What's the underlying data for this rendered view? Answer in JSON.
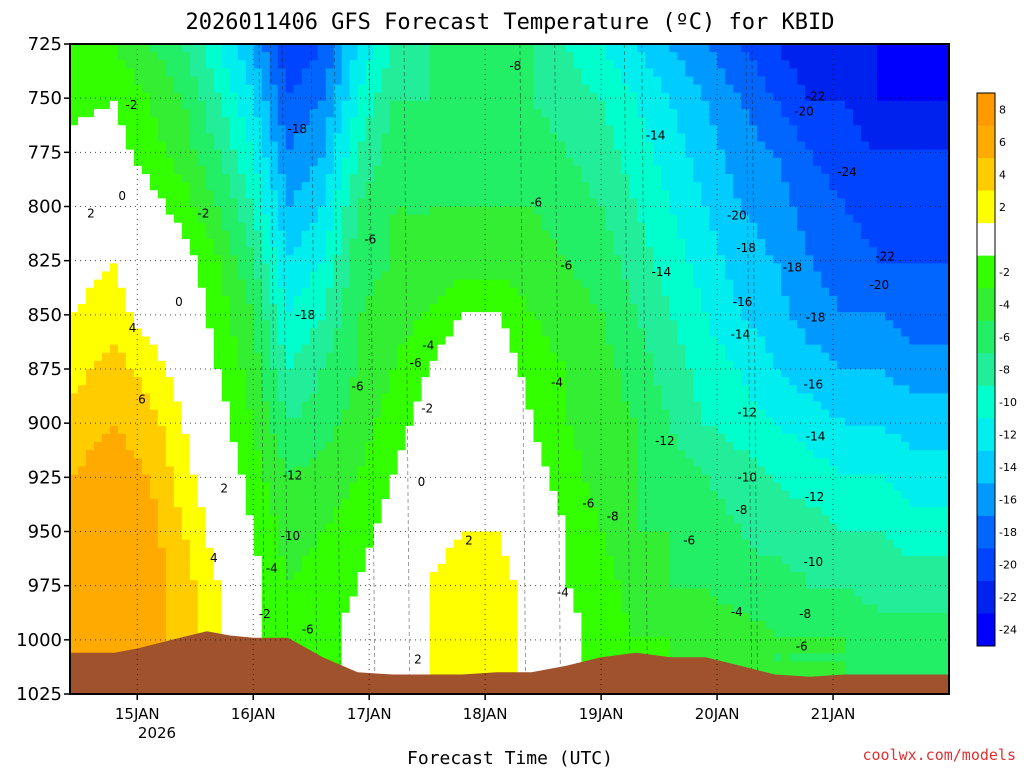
{
  "chart_data": {
    "type": "heatmap",
    "title": "2026011406 GFS Forecast Temperature (ºC) for KBID",
    "xlabel": "Forecast Time (UTC)",
    "ylabel": "",
    "credit": "coolwx.com/models",
    "y_axis": {
      "ticks": [
        725,
        750,
        775,
        800,
        825,
        850,
        875,
        900,
        925,
        950,
        975,
        1000,
        1025
      ],
      "range": [
        725,
        1025
      ],
      "inverted": true,
      "grid": true
    },
    "x_axis": {
      "tick_labels": [
        "15JAN",
        "16JAN",
        "17JAN",
        "18JAN",
        "19JAN",
        "20JAN",
        "21JAN"
      ],
      "tick_positions_days": [
        1,
        2,
        3,
        4,
        5,
        6,
        7
      ],
      "year_label": "2026",
      "range_days": [
        0.42,
        8.0
      ],
      "grid": true
    },
    "colorbar": {
      "ticks": [
        8,
        6,
        4,
        2,
        -2,
        -4,
        -6,
        -8,
        -10,
        -12,
        -14,
        -16,
        -18,
        -20,
        -22,
        -24
      ],
      "bands": [
        {
          "min": 8,
          "max": 10,
          "color": "#ff9900"
        },
        {
          "min": 6,
          "max": 8,
          "color": "#ffaa00"
        },
        {
          "min": 4,
          "max": 6,
          "color": "#ffcc00"
        },
        {
          "min": 2,
          "max": 4,
          "color": "#ffff00"
        },
        {
          "min": -2,
          "max": 2,
          "color": "#ffffff"
        },
        {
          "min": -4,
          "max": -2,
          "color": "#33ff00"
        },
        {
          "min": -6,
          "max": -4,
          "color": "#33ee33"
        },
        {
          "min": -8,
          "max": -6,
          "color": "#22ee66"
        },
        {
          "min": -10,
          "max": -8,
          "color": "#22ee99"
        },
        {
          "min": -12,
          "max": -10,
          "color": "#00ffcc"
        },
        {
          "min": -14,
          "max": -12,
          "color": "#00eeee"
        },
        {
          "min": -16,
          "max": -14,
          "color": "#00ccff"
        },
        {
          "min": -18,
          "max": -16,
          "color": "#0099ff"
        },
        {
          "min": -20,
          "max": -18,
          "color": "#0066ff"
        },
        {
          "min": -22,
          "max": -20,
          "color": "#0044ff"
        },
        {
          "min": -24,
          "max": -22,
          "color": "#0022ee"
        },
        {
          "min": -26,
          "max": -24,
          "color": "#0000ff"
        }
      ]
    },
    "ground_color": "#a0522d",
    "freezing_line_color": "#cc1177",
    "ground_profile": {
      "days": [
        0.42,
        0.8,
        1.0,
        1.3,
        1.6,
        1.8,
        2.0,
        2.3,
        2.6,
        2.9,
        3.2,
        3.5,
        3.8,
        4.1,
        4.4,
        4.7,
        5.0,
        5.3,
        5.6,
        5.9,
        6.2,
        6.5,
        6.8,
        7.1,
        7.4,
        8.0
      ],
      "pressure": [
        1006,
        1006,
        1004,
        1000,
        996,
        998,
        999,
        999,
        1008,
        1015,
        1016,
        1016,
        1016,
        1015,
        1015,
        1012,
        1008,
        1006,
        1008,
        1008,
        1012,
        1016,
        1017,
        1016,
        1016,
        1016
      ]
    },
    "temperature_field": {
      "days": [
        0.42,
        0.8,
        1.1,
        1.4,
        1.7,
        2.0,
        2.3,
        2.6,
        2.9,
        3.2,
        3.5,
        3.8,
        4.1,
        4.4,
        4.7,
        5.0,
        5.3,
        5.6,
        5.9,
        6.2,
        6.5,
        6.8,
        7.1,
        7.4,
        7.7,
        8.0
      ],
      "pressure": [
        725,
        750,
        775,
        800,
        825,
        850,
        875,
        900,
        925,
        950,
        975,
        1000,
        1025
      ],
      "values": [
        [
          -4,
          -4,
          -6,
          -8,
          -12,
          -16,
          -22,
          -20,
          -14,
          -10,
          -8,
          -8,
          -8,
          -8,
          -10,
          -12,
          -14,
          -16,
          -18,
          -20,
          -22,
          -24,
          -24,
          -24,
          -26,
          -26
        ],
        [
          -3,
          -2,
          -4,
          -6,
          -10,
          -14,
          -20,
          -18,
          -12,
          -8,
          -8,
          -8,
          -8,
          -8,
          -9,
          -10,
          -12,
          -14,
          -16,
          -18,
          -20,
          -22,
          -22,
          -24,
          -24,
          -24
        ],
        [
          -1,
          -1,
          -3,
          -5,
          -8,
          -12,
          -18,
          -16,
          -10,
          -7,
          -7,
          -7,
          -7,
          -7,
          -8,
          -9,
          -11,
          -13,
          -15,
          -17,
          -18,
          -20,
          -21,
          -22,
          -22,
          -22
        ],
        [
          0,
          0,
          -1,
          -3,
          -6,
          -10,
          -16,
          -14,
          -8,
          -6,
          -6,
          -6,
          -6,
          -6,
          -7,
          -8,
          -10,
          -12,
          -14,
          -16,
          -17,
          -19,
          -20,
          -21,
          -21,
          -21
        ],
        [
          1,
          2,
          0,
          -1,
          -4,
          -8,
          -14,
          -12,
          -7,
          -6,
          -6,
          -5,
          -5,
          -5,
          -6,
          -7,
          -9,
          -11,
          -13,
          -15,
          -16,
          -18,
          -19,
          -20,
          -20,
          -20
        ],
        [
          2,
          3,
          1,
          0,
          -3,
          -6,
          -12,
          -10,
          -6,
          -5,
          -4,
          -2,
          -2,
          -4,
          -5,
          -6,
          -8,
          -10,
          -12,
          -14,
          -15,
          -17,
          -18,
          -18,
          -19,
          -19
        ],
        [
          3,
          5,
          3,
          1,
          -2,
          -5,
          -10,
          -8,
          -6,
          -4,
          -2,
          0,
          0,
          -3,
          -4,
          -5,
          -7,
          -9,
          -11,
          -12,
          -14,
          -15,
          -16,
          -16,
          -17,
          -17
        ],
        [
          5,
          6,
          5,
          2,
          -1,
          -4,
          -8,
          -7,
          -5,
          -3,
          -1,
          1,
          1,
          -2,
          -4,
          -5,
          -6,
          -8,
          -10,
          -11,
          -12,
          -13,
          -14,
          -14,
          -15,
          -15
        ],
        [
          6,
          7,
          6,
          3,
          0,
          -3,
          -6,
          -5,
          -4,
          -2,
          0,
          1,
          1,
          -1,
          -3,
          -5,
          -6,
          -7,
          -8,
          -9,
          -10,
          -11,
          -12,
          -12,
          -13,
          -13
        ],
        [
          7,
          8,
          7,
          4,
          1,
          -2,
          -5,
          -4,
          -3,
          -1,
          1,
          2,
          2,
          0,
          -2,
          -4,
          -6,
          -6,
          -7,
          -8,
          -9,
          -9,
          -10,
          -10,
          -11,
          -11
        ],
        [
          7,
          8,
          7,
          5,
          2,
          -1,
          -4,
          -3,
          -2,
          0,
          2,
          3,
          3,
          1,
          -2,
          -3,
          -5,
          -6,
          -6,
          -7,
          -7,
          -8,
          -8,
          -9,
          -9,
          -9
        ],
        [
          6,
          7,
          7,
          5,
          2,
          -1,
          -4,
          -3,
          -1,
          1,
          2,
          3,
          3,
          1,
          -1,
          -3,
          -4,
          -4,
          -5,
          -5,
          -6,
          -6,
          -6,
          -7,
          -7,
          -7
        ],
        [
          6,
          7,
          7,
          5,
          2,
          -1,
          -4,
          -3,
          -1,
          1,
          2,
          3,
          3,
          1,
          -1,
          -3,
          -4,
          -4,
          -5,
          -5,
          -6,
          -6,
          -6,
          -7,
          -7,
          -7
        ]
      ]
    },
    "contour_labels": [
      {
        "day": 0.95,
        "p": 755,
        "text": "-2"
      },
      {
        "day": 0.87,
        "p": 797,
        "text": "0"
      },
      {
        "day": 0.6,
        "p": 805,
        "text": "2"
      },
      {
        "day": 1.57,
        "p": 805,
        "text": "-2"
      },
      {
        "day": 1.36,
        "p": 846,
        "text": "0"
      },
      {
        "day": 0.96,
        "p": 858,
        "text": "4"
      },
      {
        "day": 1.04,
        "p": 891,
        "text": "6"
      },
      {
        "day": 1.75,
        "p": 932,
        "text": "2"
      },
      {
        "day": 1.66,
        "p": 964,
        "text": "4"
      },
      {
        "day": 2.38,
        "p": 766,
        "text": "-18"
      },
      {
        "day": 3.01,
        "p": 817,
        "text": "-6"
      },
      {
        "day": 2.45,
        "p": 852,
        "text": "-18"
      },
      {
        "day": 2.9,
        "p": 885,
        "text": "-6"
      },
      {
        "day": 2.34,
        "p": 926,
        "text": "-12"
      },
      {
        "day": 2.32,
        "p": 954,
        "text": "-10"
      },
      {
        "day": 2.16,
        "p": 969,
        "text": "-4"
      },
      {
        "day": 2.1,
        "p": 990,
        "text": "-2"
      },
      {
        "day": 2.47,
        "p": 997,
        "text": "-6"
      },
      {
        "day": 4.26,
        "p": 737,
        "text": "-8"
      },
      {
        "day": 4.44,
        "p": 800,
        "text": "-6"
      },
      {
        "day": 4.7,
        "p": 829,
        "text": "-6"
      },
      {
        "day": 3.51,
        "p": 866,
        "text": "-4"
      },
      {
        "day": 3.4,
        "p": 874,
        "text": "-6"
      },
      {
        "day": 3.5,
        "p": 895,
        "text": "-2"
      },
      {
        "day": 4.62,
        "p": 883,
        "text": "-4"
      },
      {
        "day": 3.45,
        "p": 929,
        "text": "0"
      },
      {
        "day": 3.86,
        "p": 956,
        "text": "2"
      },
      {
        "day": 3.42,
        "p": 1011,
        "text": "2"
      },
      {
        "day": 4.67,
        "p": 980,
        "text": "-4"
      },
      {
        "day": 4.89,
        "p": 939,
        "text": "-6"
      },
      {
        "day": 5.1,
        "p": 945,
        "text": "-8"
      },
      {
        "day": 5.47,
        "p": 769,
        "text": "-14"
      },
      {
        "day": 5.52,
        "p": 832,
        "text": "-14"
      },
      {
        "day": 5.55,
        "p": 910,
        "text": "-12"
      },
      {
        "day": 5.76,
        "p": 956,
        "text": "-6"
      },
      {
        "day": 6.17,
        "p": 806,
        "text": "-20"
      },
      {
        "day": 6.25,
        "p": 821,
        "text": "-18"
      },
      {
        "day": 6.2,
        "p": 861,
        "text": "-14"
      },
      {
        "day": 6.22,
        "p": 846,
        "text": "-16"
      },
      {
        "day": 6.26,
        "p": 897,
        "text": "-12"
      },
      {
        "day": 6.26,
        "p": 927,
        "text": "-10"
      },
      {
        "day": 6.21,
        "p": 942,
        "text": "-8"
      },
      {
        "day": 6.17,
        "p": 989,
        "text": "-4"
      },
      {
        "day": 6.65,
        "p": 830,
        "text": "-18"
      },
      {
        "day": 6.75,
        "p": 758,
        "text": "-20"
      },
      {
        "day": 6.85,
        "p": 751,
        "text": "-22"
      },
      {
        "day": 7.12,
        "p": 786,
        "text": "-24"
      },
      {
        "day": 7.45,
        "p": 825,
        "text": "-22"
      },
      {
        "day": 7.4,
        "p": 838,
        "text": "-20"
      },
      {
        "day": 6.85,
        "p": 853,
        "text": "-18"
      },
      {
        "day": 6.83,
        "p": 884,
        "text": "-16"
      },
      {
        "day": 6.85,
        "p": 908,
        "text": "-14"
      },
      {
        "day": 6.84,
        "p": 936,
        "text": "-12"
      },
      {
        "day": 6.83,
        "p": 966,
        "text": "-10"
      },
      {
        "day": 6.76,
        "p": 990,
        "text": "-8"
      },
      {
        "day": 6.73,
        "p": 1005,
        "text": "-6"
      }
    ]
  }
}
